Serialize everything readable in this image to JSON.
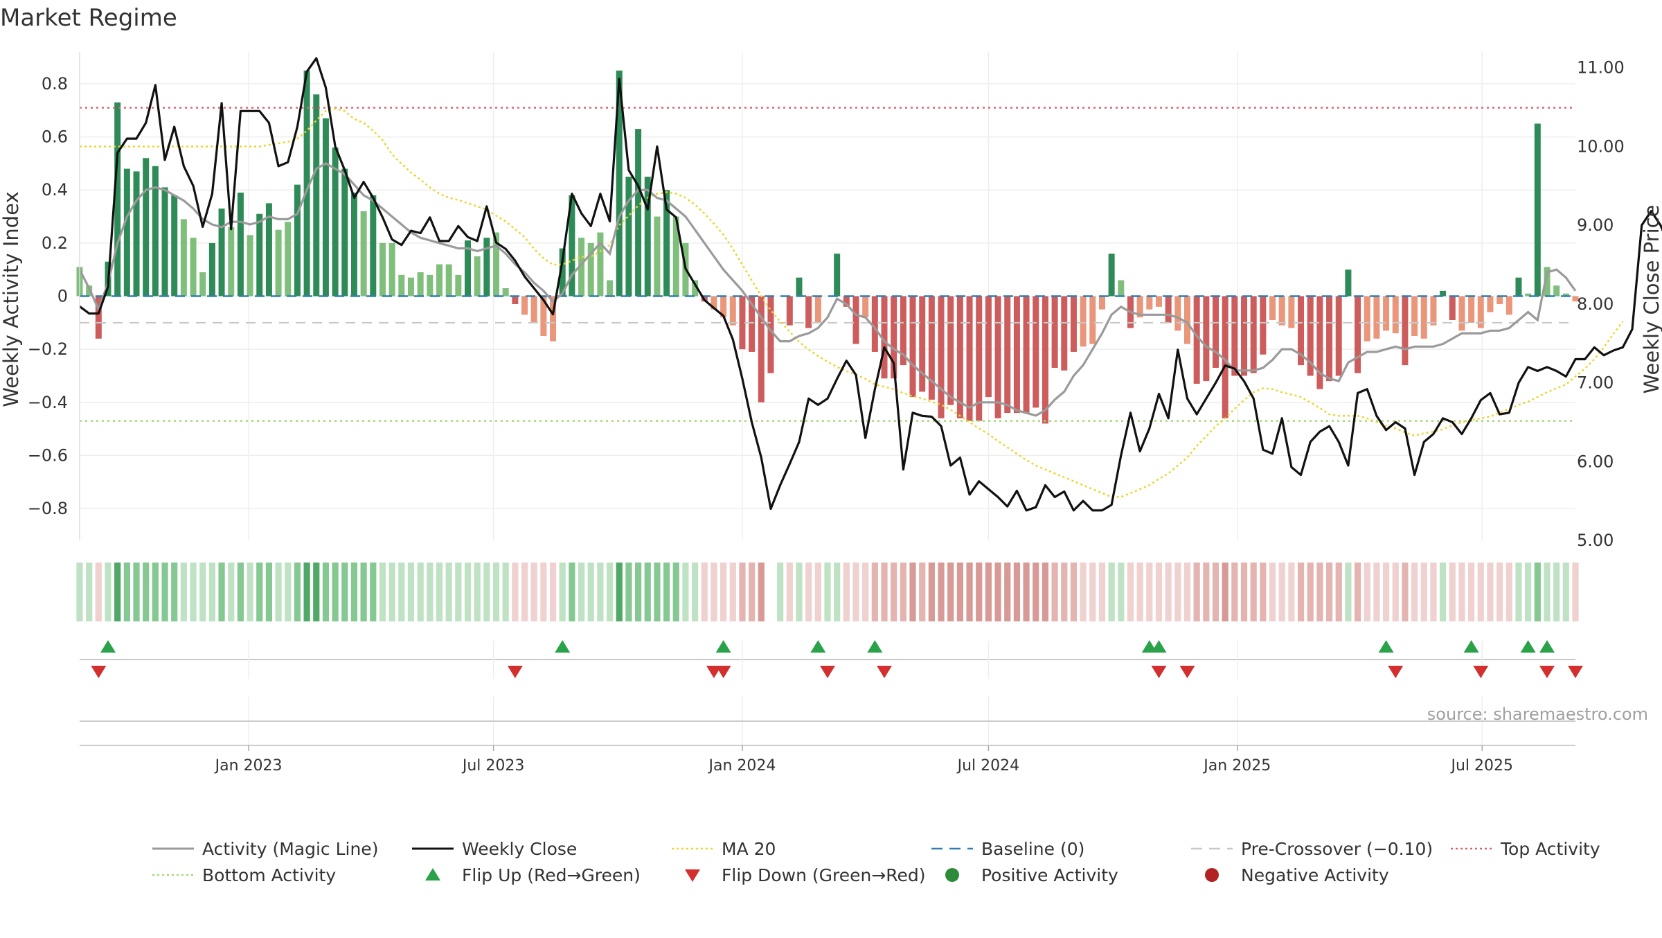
{
  "chart_data": {
    "type": "bar",
    "title": "Market Regime",
    "source": "source: sharemaestro.com",
    "ylabel_left": "Weekly Activity Index",
    "ylabel_right": "Weekly Close Price",
    "x_range": [
      "2022-08-29",
      "2025-09-08"
    ],
    "x_ticks": [
      {
        "date": "2023-01-01",
        "label": "Jan 2023"
      },
      {
        "date": "2023-07-01",
        "label": "Jul 2023"
      },
      {
        "date": "2024-01-01",
        "label": "Jan 2024"
      },
      {
        "date": "2024-07-01",
        "label": "Jul 2024"
      },
      {
        "date": "2025-01-01",
        "label": "Jan 2025"
      },
      {
        "date": "2025-07-01",
        "label": "Jul 2025"
      }
    ],
    "left_axis": {
      "ylim": [
        -0.92,
        0.92
      ],
      "ticks": [
        0.8,
        0.6,
        0.4,
        0.2,
        0,
        -0.2,
        -0.4,
        -0.6,
        -0.8
      ],
      "tick_labels": [
        "0.8",
        "0.6",
        "0.4",
        "0.2",
        "0",
        "−0.2",
        "−0.4",
        "−0.6",
        "−0.8"
      ]
    },
    "right_axis": {
      "ylim": [
        5.0,
        11.2
      ],
      "ticks": [
        11,
        10,
        9,
        8,
        7,
        6,
        5
      ],
      "tick_labels": [
        "11.00",
        "10.00",
        "9.00",
        "8.00",
        "7.00",
        "6.00",
        "5.00"
      ]
    },
    "reference_lines": {
      "baseline": 0,
      "pre_crossover": -0.1,
      "top_activity": 0.71,
      "bottom_activity": -0.47
    },
    "start_date": "2022-08-29",
    "weeks": 157,
    "activity": [
      0.11,
      0.04,
      -0.16,
      0.13,
      0.73,
      0.48,
      0.47,
      0.52,
      0.49,
      0.41,
      0.38,
      0.29,
      0.22,
      0.09,
      0.2,
      0.33,
      0.26,
      0.39,
      0.23,
      0.31,
      0.35,
      0.25,
      0.28,
      0.42,
      0.85,
      0.76,
      0.67,
      0.56,
      0.48,
      0.39,
      0.32,
      0.38,
      0.2,
      0.2,
      0.08,
      0.07,
      0.09,
      0.08,
      0.12,
      0.12,
      0.08,
      0.21,
      0.15,
      0.22,
      0.24,
      0.03,
      -0.03,
      -0.07,
      -0.1,
      -0.15,
      -0.17,
      0.18,
      0.38,
      0.22,
      0.2,
      0.24,
      0.06,
      0.85,
      0.45,
      0.63,
      0.45,
      0.3,
      0.4,
      0.3,
      0.2,
      0.06,
      -0.02,
      -0.05,
      -0.08,
      -0.11,
      -0.2,
      -0.21,
      -0.4,
      -0.29,
      0.0,
      -0.11,
      0.07,
      -0.12,
      -0.1,
      0.0,
      0.16,
      -0.04,
      -0.18,
      -0.08,
      -0.21,
      -0.31,
      -0.31,
      -0.26,
      -0.38,
      -0.36,
      -0.39,
      -0.46,
      -0.41,
      -0.46,
      -0.47,
      -0.47,
      -0.38,
      -0.46,
      -0.44,
      -0.44,
      -0.44,
      -0.42,
      -0.48,
      -0.27,
      -0.28,
      -0.21,
      -0.19,
      -0.18,
      -0.05,
      0.16,
      0.06,
      -0.12,
      -0.08,
      -0.05,
      -0.04,
      -0.1,
      -0.13,
      -0.18,
      -0.33,
      -0.32,
      -0.27,
      -0.46,
      -0.3,
      -0.3,
      -0.29,
      -0.22,
      -0.09,
      -0.11,
      -0.12,
      -0.26,
      -0.3,
      -0.35,
      -0.32,
      -0.3,
      0.1,
      -0.29,
      -0.17,
      -0.16,
      -0.13,
      -0.14,
      -0.26,
      -0.15,
      -0.16,
      -0.11,
      0.02,
      -0.09,
      -0.13,
      -0.1,
      -0.12,
      -0.06,
      -0.03,
      -0.07,
      0.07,
      0.01,
      0.65,
      0.11,
      0.04,
      0.01,
      -0.02
    ],
    "magic_line": [
      0.1,
      0.03,
      -0.05,
      0.05,
      0.2,
      0.3,
      0.36,
      0.4,
      0.41,
      0.4,
      0.38,
      0.36,
      0.33,
      0.29,
      0.27,
      0.26,
      0.28,
      0.28,
      0.27,
      0.28,
      0.3,
      0.29,
      0.29,
      0.31,
      0.4,
      0.48,
      0.5,
      0.48,
      0.46,
      0.42,
      0.38,
      0.36,
      0.33,
      0.3,
      0.27,
      0.24,
      0.22,
      0.21,
      0.2,
      0.19,
      0.18,
      0.18,
      0.17,
      0.18,
      0.19,
      0.16,
      0.12,
      0.09,
      0.05,
      0.02,
      -0.02,
      0.01,
      0.08,
      0.12,
      0.16,
      0.2,
      0.16,
      0.3,
      0.36,
      0.4,
      0.4,
      0.37,
      0.36,
      0.33,
      0.3,
      0.25,
      0.2,
      0.15,
      0.1,
      0.06,
      0.02,
      -0.03,
      -0.08,
      -0.13,
      -0.17,
      -0.17,
      -0.15,
      -0.14,
      -0.12,
      -0.08,
      -0.01,
      -0.03,
      -0.07,
      -0.08,
      -0.12,
      -0.17,
      -0.2,
      -0.22,
      -0.26,
      -0.29,
      -0.32,
      -0.35,
      -0.38,
      -0.4,
      -0.42,
      -0.4,
      -0.4,
      -0.4,
      -0.41,
      -0.43,
      -0.44,
      -0.45,
      -0.43,
      -0.39,
      -0.36,
      -0.3,
      -0.26,
      -0.2,
      -0.14,
      -0.07,
      -0.04,
      -0.06,
      -0.07,
      -0.07,
      -0.07,
      -0.07,
      -0.08,
      -0.1,
      -0.15,
      -0.19,
      -0.21,
      -0.24,
      -0.28,
      -0.28,
      -0.28,
      -0.27,
      -0.24,
      -0.2,
      -0.2,
      -0.22,
      -0.25,
      -0.29,
      -0.31,
      -0.32,
      -0.25,
      -0.23,
      -0.21,
      -0.21,
      -0.2,
      -0.19,
      -0.2,
      -0.19,
      -0.19,
      -0.19,
      -0.18,
      -0.16,
      -0.14,
      -0.14,
      -0.14,
      -0.13,
      -0.13,
      -0.12,
      -0.09,
      -0.06,
      -0.09,
      0.09,
      0.1,
      0.07,
      0.02
    ],
    "weekly_close": [
      7.97,
      7.88,
      7.88,
      8.22,
      9.92,
      10.1,
      10.1,
      10.3,
      10.78,
      9.83,
      10.25,
      9.75,
      9.5,
      8.98,
      9.4,
      10.55,
      8.95,
      10.45,
      10.45,
      10.45,
      10.3,
      9.75,
      9.8,
      10.25,
      10.95,
      11.12,
      10.75,
      10.0,
      9.7,
      9.35,
      9.55,
      9.35,
      9.1,
      8.82,
      8.75,
      8.93,
      8.9,
      9.1,
      8.8,
      8.8,
      8.99,
      8.85,
      8.8,
      9.24,
      8.78,
      8.7,
      8.55,
      8.35,
      8.2,
      8.05,
      7.87,
      8.55,
      9.4,
      9.15,
      8.99,
      9.4,
      9.05,
      10.86,
      9.7,
      9.5,
      9.2,
      10.0,
      9.2,
      9.1,
      8.45,
      8.25,
      8.05,
      7.95,
      7.85,
      7.55,
      7.05,
      6.5,
      6.05,
      5.4,
      5.7,
      5.97,
      6.25,
      6.8,
      6.72,
      6.8,
      7.05,
      7.28,
      7.1,
      6.3,
      6.92,
      7.45,
      7.25,
      5.9,
      6.62,
      6.58,
      6.57,
      6.45,
      5.95,
      6.05,
      5.58,
      5.75,
      5.65,
      5.55,
      5.43,
      5.63,
      5.38,
      5.42,
      5.7,
      5.55,
      5.62,
      5.38,
      5.5,
      5.38,
      5.38,
      5.45,
      6.08,
      6.62,
      6.13,
      6.42,
      6.86,
      6.55,
      7.42,
      6.8,
      6.6,
      6.8,
      7.0,
      7.22,
      7.18,
      7.02,
      6.8,
      6.15,
      6.1,
      6.55,
      5.93,
      5.83,
      6.25,
      6.38,
      6.45,
      6.25,
      5.95,
      6.87,
      6.92,
      6.58,
      6.4,
      6.5,
      6.42,
      5.83,
      6.25,
      6.35,
      6.55,
      6.5,
      6.35,
      6.55,
      6.78,
      6.87,
      6.6,
      6.62,
      7.0,
      7.2,
      7.15,
      7.2,
      7.15,
      7.08,
      7.3,
      7.3,
      7.45,
      7.35,
      7.41,
      7.45,
      7.68,
      9.0,
      9.18,
      9.0,
      8.7
    ],
    "ma20": [
      10.0,
      10.0,
      10.0,
      10.0,
      10.0,
      10.0,
      10.0,
      10.0,
      10.0,
      10.0,
      10.0,
      10.0,
      10.0,
      10.0,
      10.0,
      10.0,
      10.0,
      10.0,
      10.0,
      10.0,
      10.02,
      10.04,
      10.06,
      10.1,
      10.2,
      10.33,
      10.45,
      10.48,
      10.45,
      10.35,
      10.3,
      10.2,
      10.08,
      9.9,
      9.78,
      9.67,
      9.58,
      9.48,
      9.4,
      9.35,
      9.32,
      9.28,
      9.24,
      9.2,
      9.12,
      9.05,
      8.95,
      8.85,
      8.7,
      8.58,
      8.5,
      8.5,
      8.55,
      8.6,
      8.6,
      8.67,
      8.75,
      9.0,
      9.12,
      9.25,
      9.35,
      9.4,
      9.42,
      9.4,
      9.35,
      9.26,
      9.15,
      9.02,
      8.88,
      8.7,
      8.5,
      8.3,
      8.1,
      7.92,
      7.78,
      7.65,
      7.52,
      7.42,
      7.34,
      7.27,
      7.2,
      7.15,
      7.1,
      7.05,
      6.98,
      6.95,
      6.92,
      6.87,
      6.83,
      6.8,
      6.76,
      6.72,
      6.66,
      6.58,
      6.5,
      6.42,
      6.35,
      6.26,
      6.18,
      6.1,
      6.02,
      5.95,
      5.9,
      5.85,
      5.8,
      5.75,
      5.7,
      5.65,
      5.6,
      5.55,
      5.55,
      5.6,
      5.65,
      5.7,
      5.78,
      5.85,
      5.95,
      6.05,
      6.2,
      6.32,
      6.45,
      6.55,
      6.67,
      6.78,
      6.88,
      6.93,
      6.92,
      6.88,
      6.85,
      6.82,
      6.75,
      6.68,
      6.6,
      6.58,
      6.58,
      6.58,
      6.55,
      6.5,
      6.45,
      6.42,
      6.37,
      6.33,
      6.36,
      6.38,
      6.41,
      6.46,
      6.5,
      6.53,
      6.55,
      6.57,
      6.62,
      6.67,
      6.72,
      6.76,
      6.82,
      6.88,
      6.93,
      6.98,
      7.08,
      7.18,
      7.3,
      7.45,
      7.62,
      7.78
    ],
    "regime_strip_missing": [
      73
    ],
    "flip_up": [
      "2022-09-19",
      "2023-08-21",
      "2023-12-18",
      "2024-02-26",
      "2024-04-08",
      "2024-10-28",
      "2024-11-04",
      "2025-04-21",
      "2025-06-23",
      "2025-08-04",
      "2025-08-18"
    ],
    "flip_down": [
      "2022-09-12",
      "2023-07-17",
      "2023-12-11",
      "2023-12-18",
      "2024-03-04",
      "2024-04-15",
      "2024-11-04",
      "2024-11-25",
      "2025-04-28",
      "2025-06-30",
      "2025-08-18",
      "2025-09-08"
    ],
    "legend": [
      {
        "label": "Activity (Magic Line)",
        "style": "solid",
        "color": "#9a9a9a"
      },
      {
        "label": "Weekly Close",
        "style": "solid",
        "color": "#111111"
      },
      {
        "label": "MA 20",
        "style": "dotted",
        "color": "#ead62a"
      },
      {
        "label": "Baseline (0)",
        "style": "dashed",
        "color": "#2f7fb5"
      },
      {
        "label": "Pre-Crossover (−0.10)",
        "style": "dashed",
        "color": "#c8c8c8"
      },
      {
        "label": "Top Activity",
        "style": "dotted",
        "color": "#e06070"
      },
      {
        "label": "Bottom Activity",
        "style": "dotted",
        "color": "#a8d878"
      },
      {
        "label": "Flip Up (Red→Green)",
        "style": "triangle-up",
        "color": "#2aa24a"
      },
      {
        "label": "Flip Down (Green→Red)",
        "style": "triangle-down",
        "color": "#d32f2f"
      },
      {
        "label": "Positive Activity",
        "style": "circle",
        "color": "#2e8b3a"
      },
      {
        "label": "Negative Activity",
        "style": "circle",
        "color": "#b22222"
      }
    ],
    "colors": {
      "strong_positive": "#2e8b57",
      "positive": "#7fbf7b",
      "strong_negative": "#cd5c5c",
      "negative": "#e9967a",
      "gridline": "#eeeeee"
    },
    "grid": true
  }
}
